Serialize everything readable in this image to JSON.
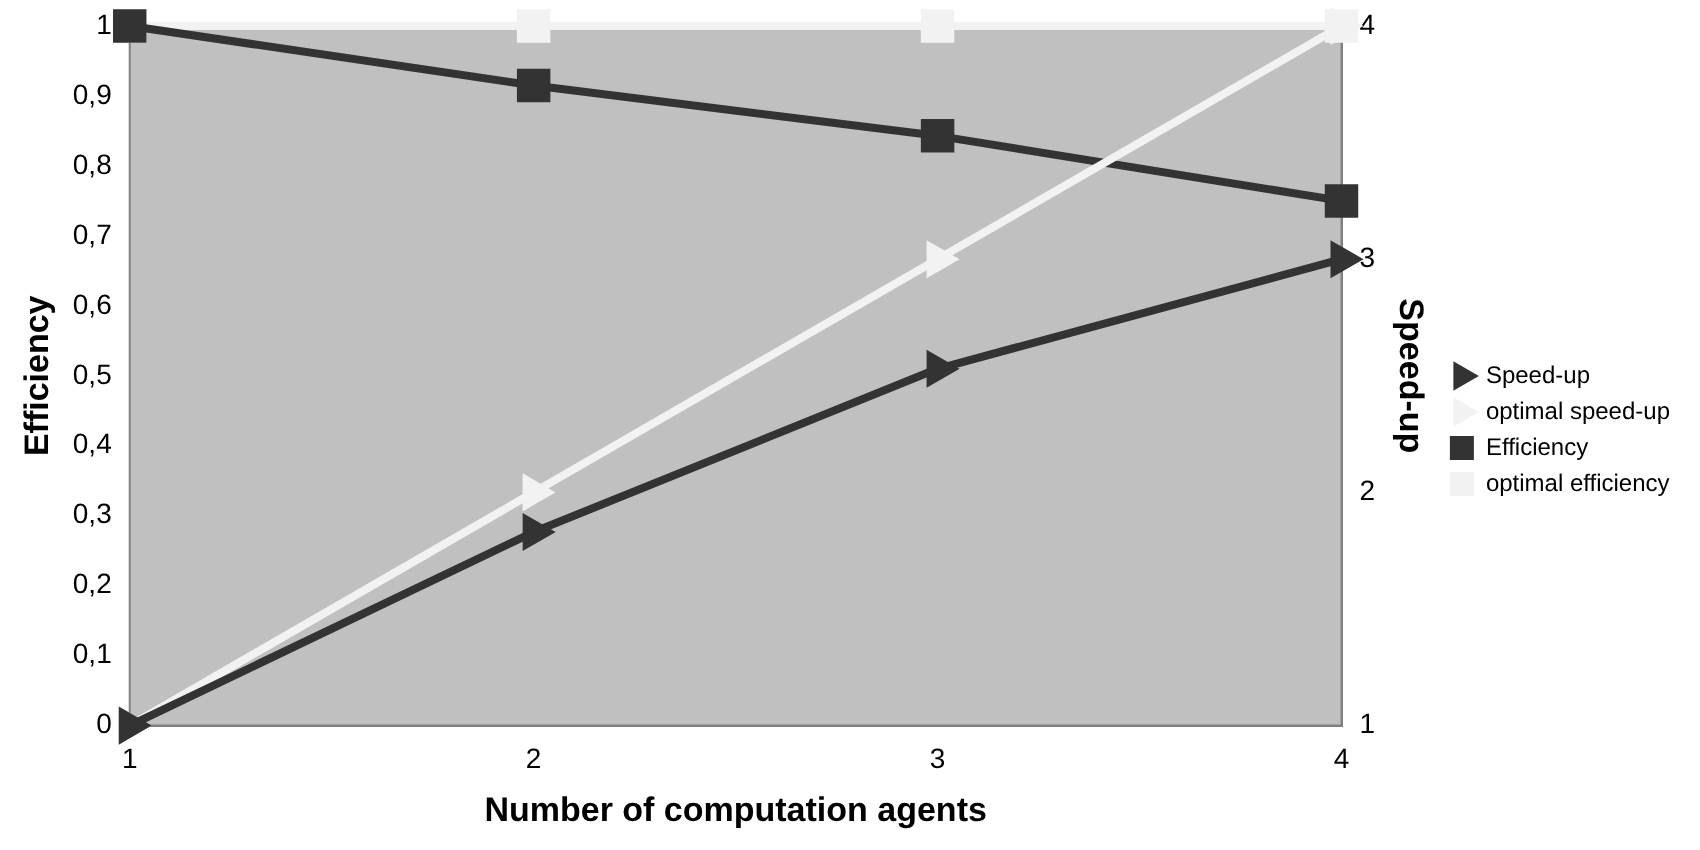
{
  "chart_data": {
    "type": "line",
    "xlabel": "Number of computation agents",
    "ylabel": "Efficiency",
    "y2label": "Speed-up",
    "x": [
      1,
      2,
      3,
      4
    ],
    "xlim": [
      1,
      4
    ],
    "xticks": [
      1,
      2,
      3,
      4
    ],
    "ylim": [
      0,
      1
    ],
    "yticks": [
      {
        "value": 0,
        "label": "0"
      },
      {
        "value": 0.1,
        "label": "0,1"
      },
      {
        "value": 0.2,
        "label": "0,2"
      },
      {
        "value": 0.3,
        "label": "0,3"
      },
      {
        "value": 0.4,
        "label": "0,4"
      },
      {
        "value": 0.5,
        "label": "0,5"
      },
      {
        "value": 0.6,
        "label": "0,6"
      },
      {
        "value": 0.7,
        "label": "0,7"
      },
      {
        "value": 0.8,
        "label": "0,8"
      },
      {
        "value": 0.9,
        "label": "0,9"
      },
      {
        "value": 1,
        "label": "1"
      }
    ],
    "y2lim": [
      1,
      4
    ],
    "y2ticks": [
      1,
      2,
      3,
      4
    ],
    "series": [
      {
        "name": "Speed-up",
        "color": "#333333",
        "values": [
          1,
          1.83,
          2.53,
          3.0
        ],
        "axis": "y2",
        "marker": "triangle"
      },
      {
        "name": "optimal speed-up",
        "color": "#f2f2f2",
        "values": [
          1,
          2,
          3,
          4
        ],
        "axis": "y2",
        "marker": "triangle"
      },
      {
        "name": "Efficiency",
        "color": "#333333",
        "values": [
          1,
          0.915,
          0.843,
          0.75
        ],
        "marker": "square"
      },
      {
        "name": "optimal efficiency",
        "color": "#f2f2f2",
        "values": [
          1,
          1,
          1,
          1
        ],
        "marker": "square"
      }
    ],
    "grid": false,
    "legend": "right"
  }
}
